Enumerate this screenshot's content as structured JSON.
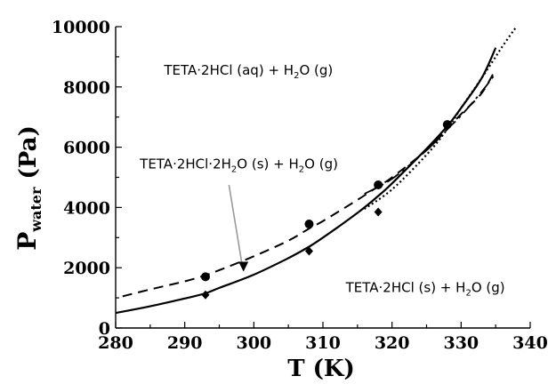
{
  "chart_data": {
    "type": "line",
    "xlabel": "T (K)",
    "ylabel": {
      "main": "P",
      "subscript": "water",
      "unit": " (Pa)"
    },
    "xlim": [
      280,
      340
    ],
    "ylim": [
      0,
      10000
    ],
    "x_ticks": [
      "280",
      "290",
      "300",
      "310",
      "320",
      "330",
      "340"
    ],
    "y_ticks": [
      "0",
      "2000",
      "4000",
      "6000",
      "8000",
      "10000"
    ],
    "grid": false,
    "series": [
      {
        "style": "solid",
        "color": "#000000",
        "x": [
          280,
          285,
          290,
          293,
          295,
          300,
          305,
          308,
          310,
          315,
          318,
          320,
          325,
          328,
          330,
          333,
          335
        ],
        "y": [
          500,
          720,
          980,
          1150,
          1330,
          1770,
          2320,
          2700,
          3000,
          3820,
          4380,
          4800,
          5950,
          6700,
          7300,
          8300,
          9300
        ]
      },
      {
        "style": "dashed",
        "color": "#000000",
        "x": [
          281,
          285,
          290,
          293,
          295,
          300,
          305,
          308,
          310,
          315,
          318,
          320,
          325,
          328,
          330,
          333,
          335
        ],
        "y": [
          1050,
          1280,
          1550,
          1750,
          1920,
          2380,
          2900,
          3300,
          3550,
          4250,
          4700,
          5000,
          5900,
          6600,
          7100,
          7800,
          8600
        ]
      },
      {
        "style": "long-dash-dot",
        "color": "#000000",
        "x": [
          316,
          320,
          325,
          328,
          330,
          333,
          335
        ],
        "y": [
          4450,
          4950,
          5900,
          6600,
          7050,
          7850,
          8450
        ]
      },
      {
        "style": "dotted",
        "color": "#000000",
        "x": [
          316,
          320,
          325,
          328,
          330,
          333,
          336,
          338
        ],
        "y": [
          3950,
          4600,
          5750,
          6600,
          7300,
          8300,
          9350,
          10000
        ]
      }
    ],
    "markers": [
      {
        "shape": "diamond",
        "x": 293,
        "y": 1100
      },
      {
        "shape": "diamond",
        "x": 308,
        "y": 2550
      },
      {
        "shape": "diamond",
        "x": 318,
        "y": 3850
      },
      {
        "shape": "diamond",
        "x": 328,
        "y": 6700
      },
      {
        "shape": "circle",
        "x": 293,
        "y": 1700
      },
      {
        "shape": "circle",
        "x": 308,
        "y": 3450
      },
      {
        "shape": "circle",
        "x": 318,
        "y": 4750
      },
      {
        "shape": "circle",
        "x": 328,
        "y": 6750
      },
      {
        "shape": "triangle",
        "x": 298.5,
        "y": 2050
      }
    ],
    "annotations": [
      {
        "text": "TETA·2HCl (aq) + H",
        "sub": "2",
        "tail": "O (g)",
        "x": 287,
        "y": 8400
      },
      {
        "text": "TETA·2HCl·2H",
        "sub": "2",
        "tail": "O (s) + H",
        "sub2": "2",
        "tail2": "O (g)",
        "x": 283.5,
        "y": 5300
      },
      {
        "text": "TETA·2HCl (s) + H",
        "sub": "2",
        "tail": "O (g)",
        "x": 313.3,
        "y": 1200
      }
    ],
    "arrow": {
      "from": [
        296.4,
        4750
      ],
      "to": [
        298.3,
        2100
      ]
    }
  }
}
